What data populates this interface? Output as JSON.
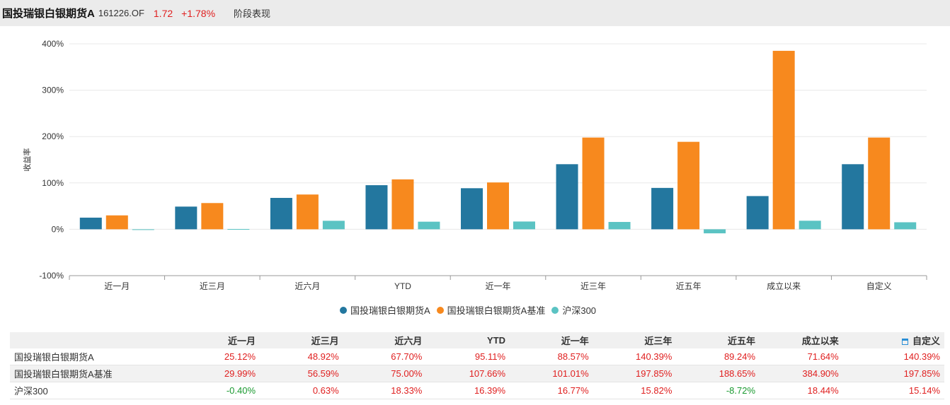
{
  "header": {
    "fund_name": "国投瑞银白银期货A",
    "fund_code": "161226.OF",
    "price": "1.72",
    "change": "+1.78%",
    "section_title": "阶段表现"
  },
  "colors": {
    "fund": "#23779f",
    "benchmark": "#f7891e",
    "index": "#5bc3c3",
    "positive": "#e02020",
    "negative": "#1a9a30",
    "link": "#2a8fd6"
  },
  "chart_data": {
    "type": "bar",
    "ylabel": "收益率",
    "ylim": [
      -100,
      400
    ],
    "yticks": [
      "-100%",
      "0%",
      "100%",
      "200%",
      "300%",
      "400%"
    ],
    "ytick_values": [
      -100,
      0,
      100,
      200,
      300,
      400
    ],
    "categories": [
      "近一月",
      "近三月",
      "近六月",
      "YTD",
      "近一年",
      "近三年",
      "近五年",
      "成立以来",
      "自定义"
    ],
    "legend_position": "bottom-center",
    "grid": true,
    "series": [
      {
        "name": "国投瑞银白银期货A",
        "color": "#23779f",
        "values": [
          25.12,
          48.92,
          67.7,
          95.11,
          88.57,
          140.39,
          89.24,
          71.64,
          140.39
        ]
      },
      {
        "name": "国投瑞银白银期货A基准",
        "color": "#f7891e",
        "values": [
          29.99,
          56.59,
          75.0,
          107.66,
          101.01,
          197.85,
          188.65,
          384.9,
          197.85
        ]
      },
      {
        "name": "沪深300",
        "color": "#5bc3c3",
        "values": [
          -0.4,
          0.63,
          18.33,
          16.39,
          16.77,
          15.82,
          -8.72,
          18.44,
          15.14
        ]
      }
    ]
  },
  "table": {
    "custom_label": "自定义",
    "columns": [
      "近一月",
      "近三月",
      "近六月",
      "YTD",
      "近一年",
      "近三年",
      "近五年",
      "成立以来"
    ],
    "rows": [
      {
        "name": "国投瑞银白银期货A",
        "values": [
          "25.12%",
          "48.92%",
          "67.70%",
          "95.11%",
          "88.57%",
          "140.39%",
          "89.24%",
          "71.64%",
          "140.39%"
        ]
      },
      {
        "name": "国投瑞银白银期货A基准",
        "values": [
          "29.99%",
          "56.59%",
          "75.00%",
          "107.66%",
          "101.01%",
          "197.85%",
          "188.65%",
          "384.90%",
          "197.85%"
        ]
      },
      {
        "name": "沪深300",
        "values": [
          "-0.40%",
          "0.63%",
          "18.33%",
          "16.39%",
          "16.77%",
          "15.82%",
          "-8.72%",
          "18.44%",
          "15.14%"
        ]
      }
    ]
  }
}
